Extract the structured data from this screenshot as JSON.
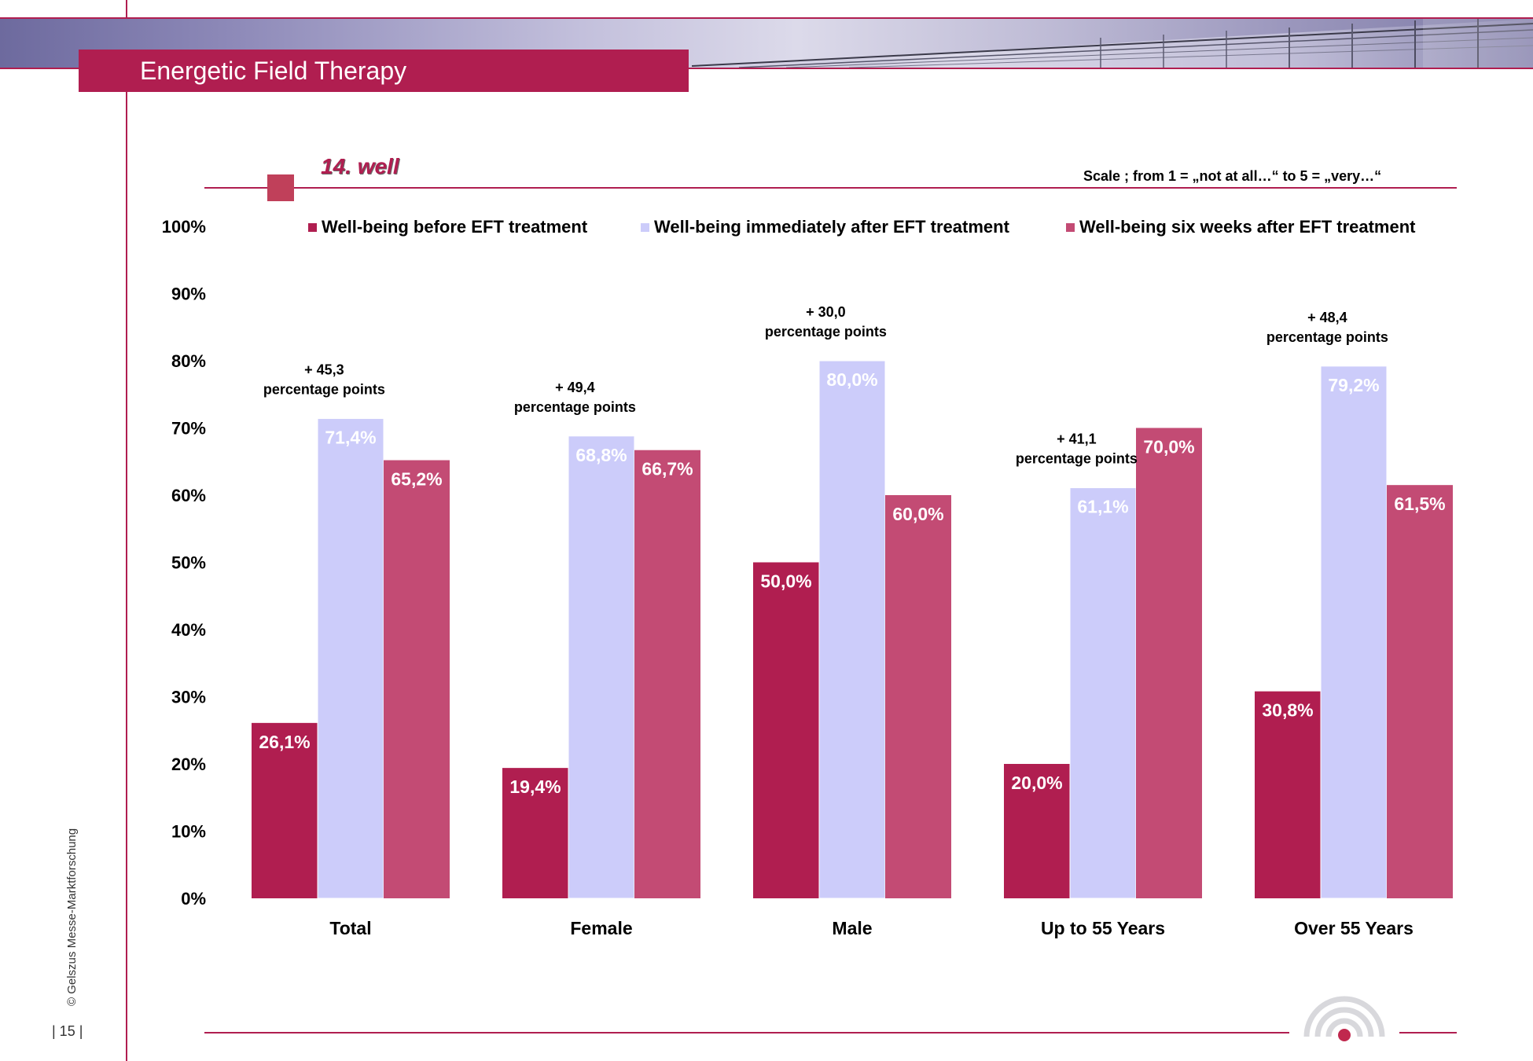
{
  "header": {
    "title": "Energetic Field Therapy"
  },
  "subtitle": "14. well",
  "scale_note": "Scale ; from 1 = „not at all…“  to 5 = „very…“",
  "footer": {
    "credit": "© Gelszus Messe-Marktforschung",
    "page_number": "| 15 |"
  },
  "colors": {
    "accent": "#b01e50",
    "before": "#b01e50",
    "immediately": "#ccccfa",
    "six_weeks": "#c34b74"
  },
  "chart_data": {
    "type": "bar",
    "categories": [
      "Total",
      "Female",
      "Male",
      "Up to 55 Years",
      "Over 55 Years"
    ],
    "series": [
      {
        "name": "Well-being before EFT treatment",
        "values": [
          26.1,
          19.4,
          50.0,
          20.0,
          30.8
        ],
        "labels": [
          "26,1%",
          "19,4%",
          "50,0%",
          "20,0%",
          "30,8%"
        ]
      },
      {
        "name": "Well-being immediately after EFT treatment",
        "values": [
          71.4,
          68.8,
          80.0,
          61.1,
          79.2
        ],
        "labels": [
          "71,4%",
          "68,8%",
          "80,0%",
          "61,1%",
          "79,2%"
        ]
      },
      {
        "name": "Well-being six weeks after EFT treatment",
        "values": [
          65.2,
          66.7,
          60.0,
          70.0,
          61.5
        ],
        "labels": [
          "65,2%",
          "66,7%",
          "60,0%",
          "70,0%",
          "61,5%"
        ]
      }
    ],
    "ylim": [
      0,
      100
    ],
    "yticks": [
      "0%",
      "10%",
      "20%",
      "30%",
      "40%",
      "50%",
      "60%",
      "70%",
      "80%",
      "90%",
      "100%"
    ],
    "legend_position": "top",
    "grid": false,
    "annotations": [
      {
        "category": "Total",
        "line1": "+ 45,3",
        "line2": "percentage points"
      },
      {
        "category": "Female",
        "line1": "+ 49,4",
        "line2": "percentage points"
      },
      {
        "category": "Male",
        "line1": "+ 30,0",
        "line2": "percentage points"
      },
      {
        "category": "Up to 55 Years",
        "line1": "+ 41,1",
        "line2": "percentage points"
      },
      {
        "category": "Over 55 Years",
        "line1": "+ 48,4",
        "line2": "percentage points"
      }
    ]
  }
}
